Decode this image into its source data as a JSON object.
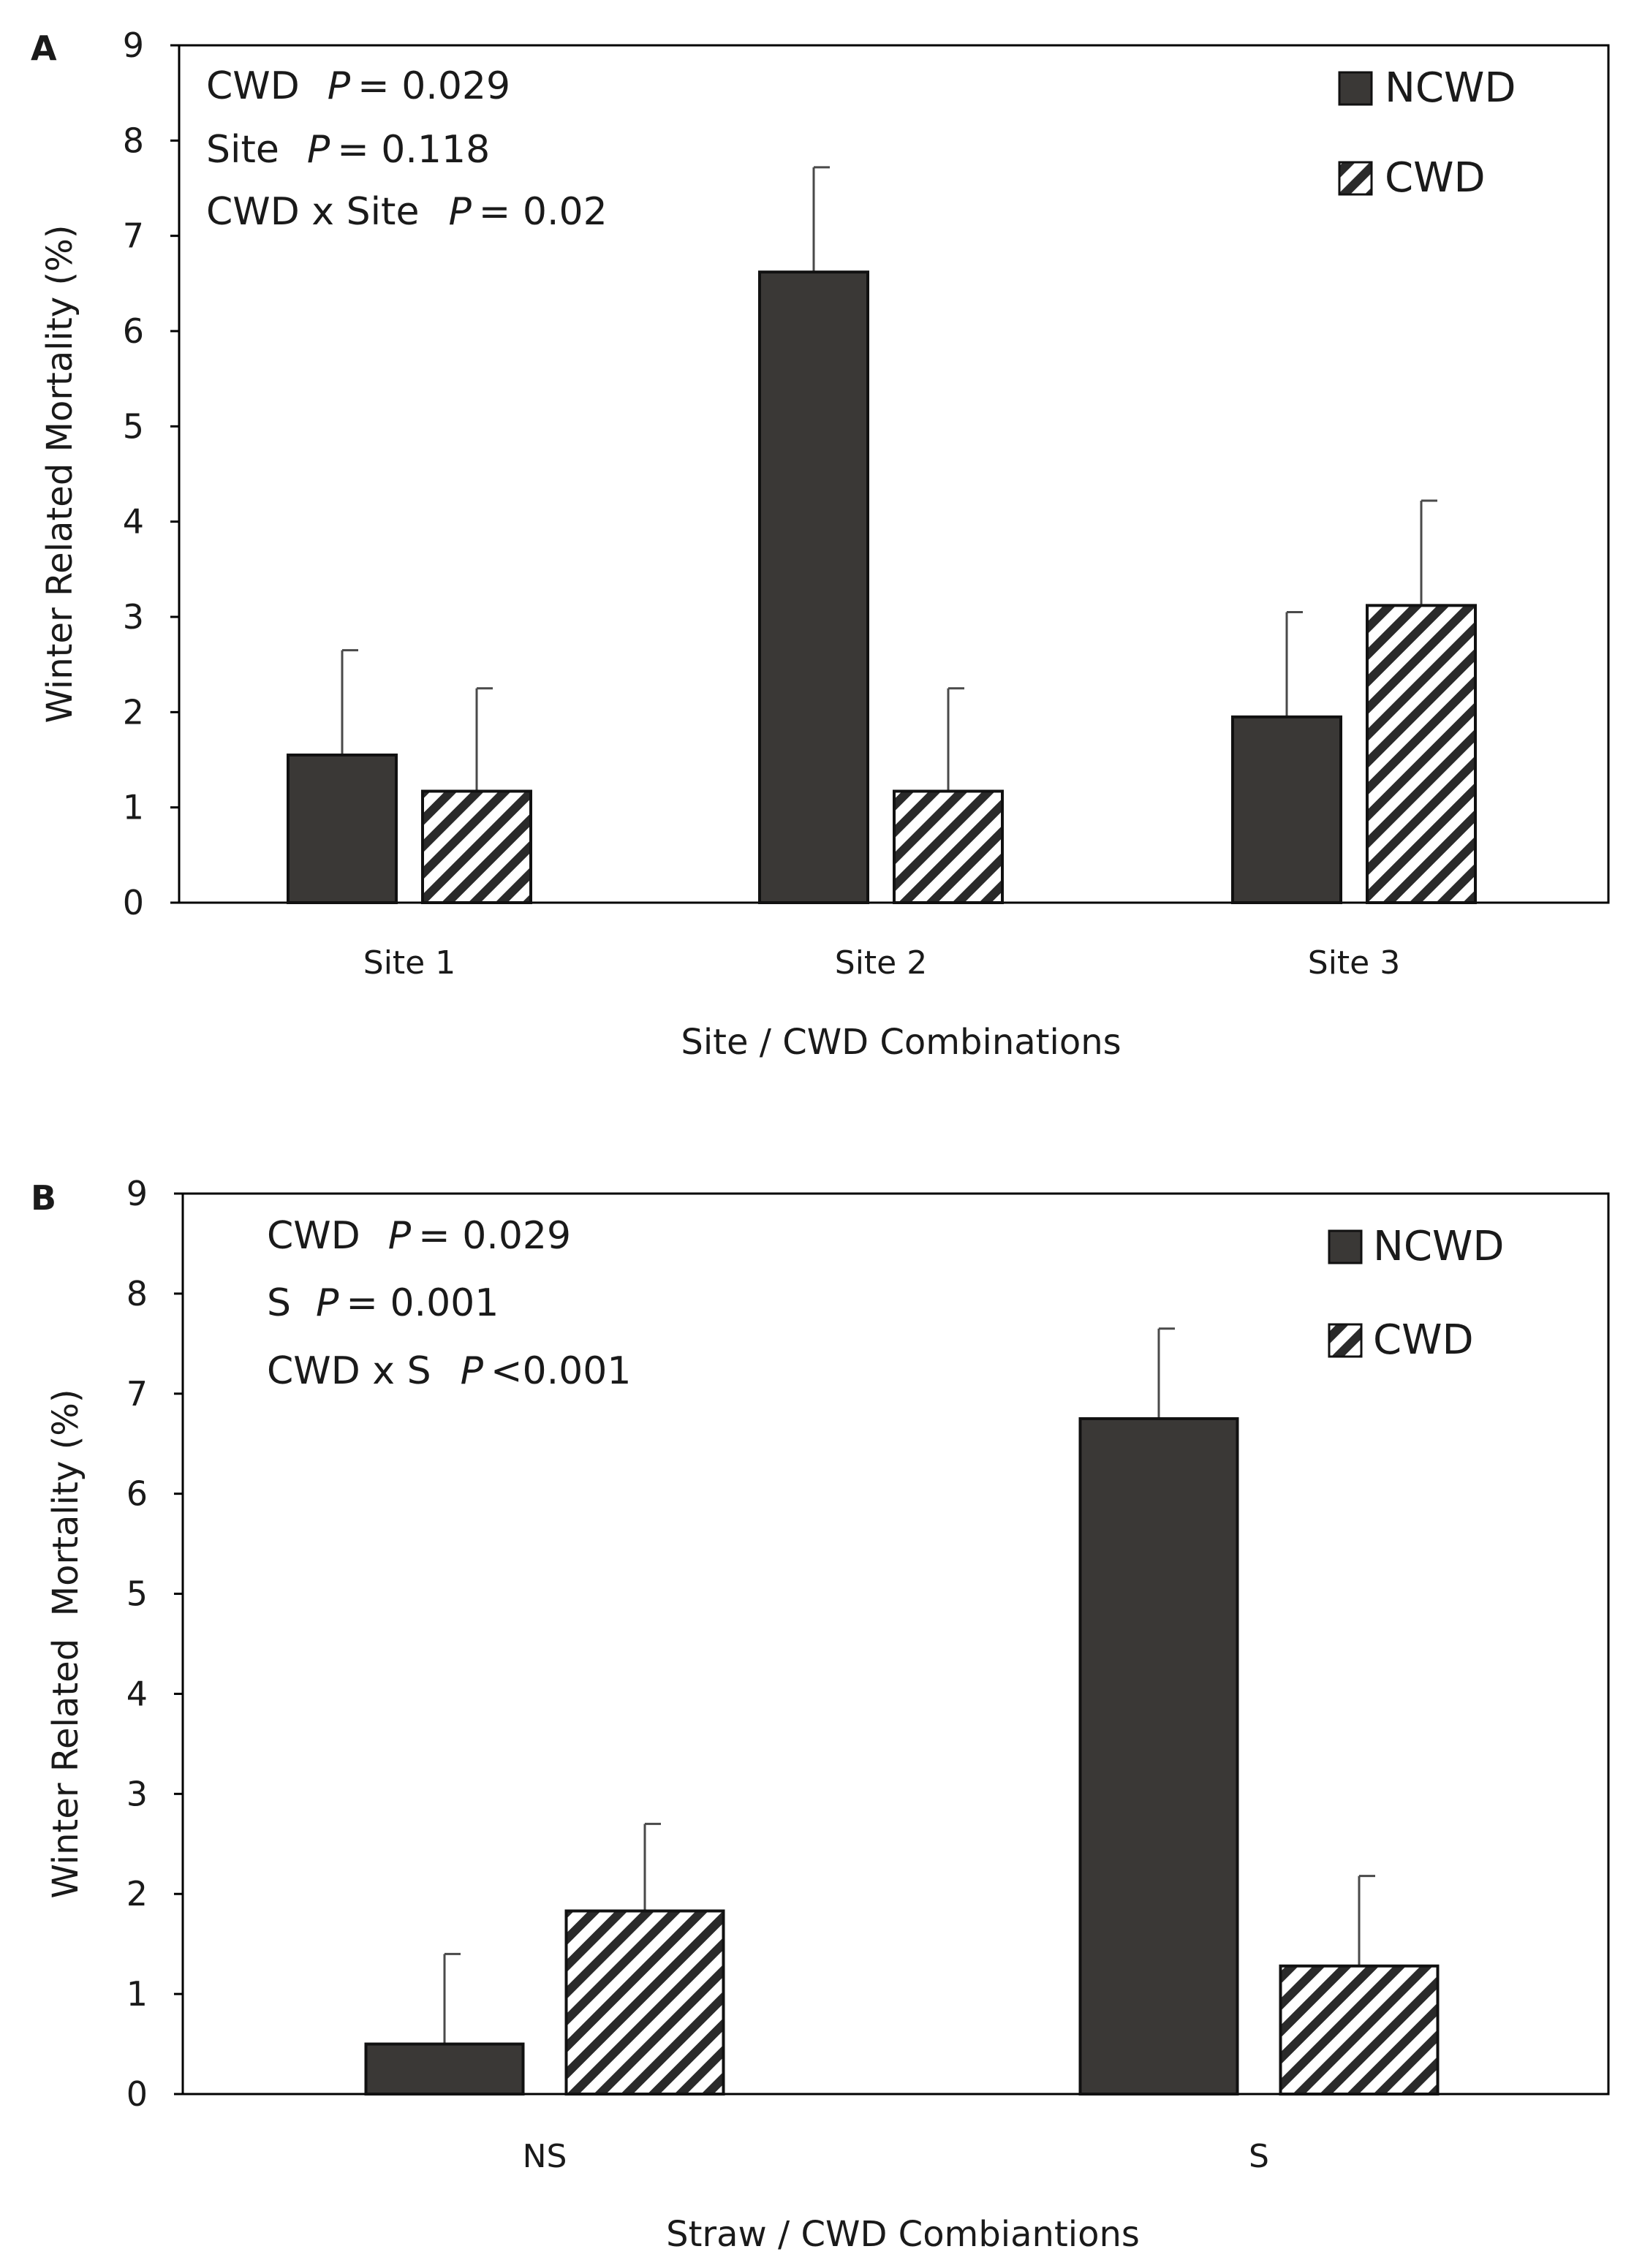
{
  "chart_data": [
    {
      "panel": "A",
      "type": "bar",
      "categories": [
        "Site 1",
        "Site 2",
        "Site 3"
      ],
      "series": [
        {
          "name": "NCWD",
          "values": [
            1.55,
            6.62,
            1.95
          ],
          "errors": [
            1.1,
            1.1,
            1.1
          ]
        },
        {
          "name": "CWD",
          "values": [
            1.17,
            1.17,
            3.12
          ],
          "errors": [
            1.08,
            1.08,
            1.1
          ]
        }
      ],
      "xlabel": "Site / CWD Combinations",
      "ylabel": "Winter Related Mortality (%)",
      "ylim": [
        0,
        9
      ],
      "yticks": [
        0,
        1,
        2,
        3,
        4,
        5,
        6,
        7,
        8,
        9
      ],
      "stats": [
        {
          "label": "CWD",
          "p_label": "P",
          "value": "= 0.029"
        },
        {
          "label": "Site",
          "p_label": "P",
          "value": "= 0.118"
        },
        {
          "label": "CWD x Site",
          "p_label": "P",
          "value": "= 0.02"
        }
      ],
      "legend": [
        "NCWD",
        "CWD"
      ],
      "legend_position": "top-right"
    },
    {
      "panel": "B",
      "type": "bar",
      "categories": [
        "NS",
        "S"
      ],
      "series": [
        {
          "name": "NCWD",
          "values": [
            0.5,
            6.75
          ],
          "errors": [
            0.9,
            0.9
          ]
        },
        {
          "name": "CWD",
          "values": [
            1.83,
            1.28
          ],
          "errors": [
            0.87,
            0.9
          ]
        }
      ],
      "xlabel": "Straw / CWD Combiantions",
      "ylabel": "Winter Related  Mortality (%)",
      "ylim": [
        0,
        9
      ],
      "yticks": [
        0,
        1,
        2,
        3,
        4,
        5,
        6,
        7,
        8,
        9
      ],
      "stats": [
        {
          "label": "CWD",
          "p_label": "P",
          "value": "= 0.029"
        },
        {
          "label": "S",
          "p_label": "P",
          "value": "= 0.001"
        },
        {
          "label": "CWD x S",
          "p_label": "P",
          "value": "<0.001"
        }
      ],
      "legend": [
        "NCWD",
        "CWD"
      ],
      "legend_position": "top-right"
    }
  ],
  "colors": {
    "ncwd_fill": "#3a3836",
    "cwd_stripe": "#2a2a2a",
    "axis": "#000000",
    "error_bar": "#4a4a4a"
  }
}
